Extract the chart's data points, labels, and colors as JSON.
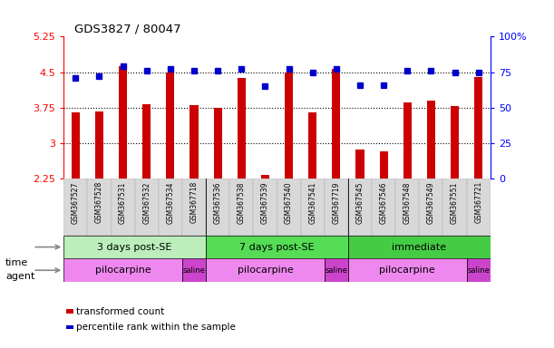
{
  "title": "GDS3827 / 80047",
  "samples": [
    "GSM367527",
    "GSM367528",
    "GSM367531",
    "GSM367532",
    "GSM367534",
    "GSM367718",
    "GSM367536",
    "GSM367538",
    "GSM367539",
    "GSM367540",
    "GSM367541",
    "GSM367719",
    "GSM367545",
    "GSM367546",
    "GSM367548",
    "GSM367549",
    "GSM367551",
    "GSM367721"
  ],
  "transformed_count": [
    3.65,
    3.67,
    4.62,
    3.83,
    4.5,
    3.8,
    3.75,
    4.38,
    2.32,
    4.5,
    3.65,
    4.57,
    2.87,
    2.82,
    3.85,
    3.9,
    3.78,
    4.4
  ],
  "percentile_rank": [
    71,
    72,
    79,
    76,
    77,
    76,
    76,
    77,
    65,
    77,
    75,
    77,
    66,
    66,
    76,
    76,
    75,
    75
  ],
  "ylim_left": [
    2.25,
    5.25
  ],
  "ylim_right": [
    0,
    100
  ],
  "yticks_left": [
    2.25,
    3.0,
    3.75,
    4.5,
    5.25
  ],
  "yticks_right": [
    0,
    25,
    50,
    75,
    100
  ],
  "ytick_labels_left": [
    "2.25",
    "3",
    "3.75",
    "4.5",
    "5.25"
  ],
  "ytick_labels_right": [
    "0",
    "25",
    "50",
    "75",
    "100%"
  ],
  "hlines": [
    3.0,
    3.75,
    4.5
  ],
  "bar_color": "#cc0000",
  "dot_color": "#0000cc",
  "bar_width": 0.35,
  "time_groups": [
    {
      "label": "3 days post-SE",
      "start": 0,
      "end": 6,
      "color": "#bbeebb"
    },
    {
      "label": "7 days post-SE",
      "start": 6,
      "end": 12,
      "color": "#55dd55"
    },
    {
      "label": "immediate",
      "start": 12,
      "end": 18,
      "color": "#44cc44"
    }
  ],
  "agent_groups": [
    {
      "label": "pilocarpine",
      "start": 0,
      "end": 5,
      "color": "#ee88ee"
    },
    {
      "label": "saline",
      "start": 5,
      "end": 6,
      "color": "#cc44cc"
    },
    {
      "label": "pilocarpine",
      "start": 6,
      "end": 11,
      "color": "#ee88ee"
    },
    {
      "label": "saline",
      "start": 11,
      "end": 12,
      "color": "#cc44cc"
    },
    {
      "label": "pilocarpine",
      "start": 12,
      "end": 17,
      "color": "#ee88ee"
    },
    {
      "label": "saline",
      "start": 17,
      "end": 18,
      "color": "#cc44cc"
    }
  ],
  "legend_items": [
    {
      "label": "transformed count",
      "color": "#cc0000"
    },
    {
      "label": "percentile rank within the sample",
      "color": "#0000cc"
    }
  ],
  "bg_color": "#ffffff"
}
